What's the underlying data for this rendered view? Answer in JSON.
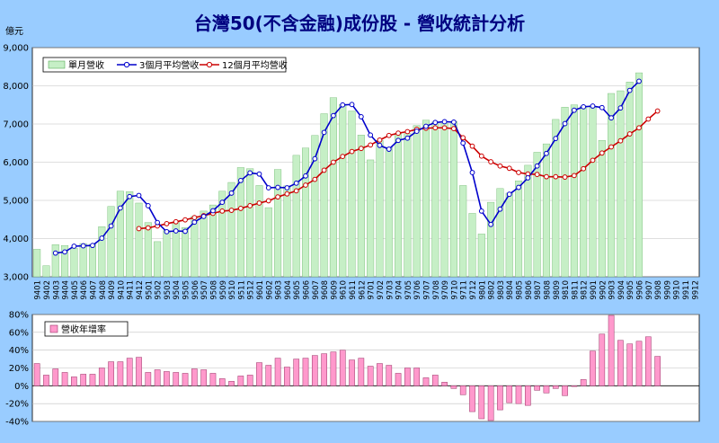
{
  "page_title": "台灣50(不含金融)成份股 - 營收統計分析",
  "chart_data": [
    {
      "type": "bar+line",
      "title": "台灣50(不含金融)成份股 - 營收統計分析",
      "ylabel": "億元",
      "ylim": [
        3000,
        9000
      ],
      "yticks": [
        "3,000",
        "4,000",
        "5,000",
        "6,000",
        "7,000",
        "8,000",
        "9,000"
      ],
      "grid": true,
      "legend": "top-left",
      "categories": [
        "9401",
        "9402",
        "9403",
        "9404",
        "9405",
        "9406",
        "9407",
        "9408",
        "9409",
        "9410",
        "9411",
        "9412",
        "9501",
        "9502",
        "9503",
        "9504",
        "9505",
        "9506",
        "9507",
        "9508",
        "9509",
        "9510",
        "9511",
        "9512",
        "9601",
        "9602",
        "9603",
        "9604",
        "9605",
        "9606",
        "9607",
        "9608",
        "9609",
        "9610",
        "9611",
        "9612",
        "9701",
        "9702",
        "9703",
        "9704",
        "9705",
        "9706",
        "9707",
        "9708",
        "9709",
        "9710",
        "9711",
        "9712",
        "9801",
        "9802",
        "9803",
        "9804",
        "9805",
        "9806",
        "9807",
        "9808",
        "9809",
        "9810",
        "9811",
        "9812",
        "9901",
        "9902",
        "9903",
        "9904",
        "9905",
        "9906",
        "9907",
        "9908",
        "9909",
        "9910",
        "9911",
        "9912"
      ],
      "series": [
        {
          "name": "單月營收",
          "kind": "bar",
          "color": "#c6efc6",
          "values": [
            3720,
            3290,
            3840,
            3820,
            3750,
            3870,
            3850,
            4310,
            4840,
            5240,
            5230,
            4930,
            4420,
            3920,
            4210,
            4440,
            4290,
            4580,
            4720,
            4880,
            5240,
            5470,
            5860,
            5830,
            5390,
            4810,
            5810,
            5380,
            6180,
            6370,
            6700,
            7270,
            7690,
            7510,
            7340,
            6710,
            6060,
            6570,
            6390,
            6750,
            6750,
            6960,
            7100,
            7050,
            7020,
            7070,
            5390,
            4660,
            4120,
            4950,
            5310,
            5190,
            5510,
            5920,
            6260,
            6480,
            7120,
            7440,
            7500,
            7470,
            7440,
            6570,
            7800,
            7870,
            8100,
            8340,
            null,
            null,
            null,
            null,
            null,
            null
          ]
        },
        {
          "name": "3個月平均營收",
          "kind": "line",
          "color": "#0000cc",
          "values": [
            null,
            null,
            3620,
            3650,
            3800,
            3810,
            3820,
            4010,
            4330,
            4800,
            5100,
            5130,
            4860,
            4420,
            4180,
            4200,
            4190,
            4430,
            4580,
            4730,
            4950,
            5190,
            5520,
            5720,
            5690,
            5330,
            5340,
            5330,
            5450,
            5640,
            6090,
            6780,
            7220,
            7500,
            7510,
            7190,
            6710,
            6440,
            6340,
            6570,
            6630,
            6810,
            6940,
            7040,
            7060,
            7050,
            6500,
            5730,
            4720,
            4370,
            4770,
            5160,
            5340,
            5590,
            5900,
            6230,
            6620,
            7010,
            7360,
            7450,
            7470,
            7430,
            7160,
            7420,
            7880,
            8120,
            null,
            null,
            null,
            null,
            null,
            null
          ]
        },
        {
          "name": "12個月平均營收",
          "kind": "line",
          "color": "#cc0000",
          "values": [
            null,
            null,
            null,
            null,
            null,
            null,
            null,
            null,
            null,
            null,
            null,
            4260,
            4280,
            4330,
            4390,
            4440,
            4490,
            4550,
            4600,
            4660,
            4720,
            4740,
            4790,
            4860,
            4930,
            4990,
            5090,
            5170,
            5250,
            5400,
            5550,
            5790,
            6000,
            6150,
            6280,
            6360,
            6450,
            6580,
            6700,
            6760,
            6800,
            6860,
            6890,
            6900,
            6900,
            6880,
            6640,
            6420,
            6160,
            6010,
            5900,
            5840,
            5730,
            5690,
            5680,
            5620,
            5620,
            5610,
            5650,
            5830,
            6050,
            6240,
            6400,
            6560,
            6740,
            6900,
            7130,
            7340,
            null,
            null,
            null,
            null
          ]
        }
      ]
    },
    {
      "type": "bar",
      "ylim": [
        -40,
        80
      ],
      "yticks": [
        "-40%",
        "-20%",
        "0%",
        "20%",
        "40%",
        "60%",
        "80%"
      ],
      "grid": true,
      "legend": "top-left",
      "categories": [
        "9401",
        "9402",
        "9403",
        "9404",
        "9405",
        "9406",
        "9407",
        "9408",
        "9409",
        "9410",
        "9411",
        "9412",
        "9501",
        "9502",
        "9503",
        "9504",
        "9505",
        "9506",
        "9507",
        "9508",
        "9509",
        "9510",
        "9511",
        "9512",
        "9601",
        "9602",
        "9603",
        "9604",
        "9605",
        "9606",
        "9607",
        "9608",
        "9609",
        "9610",
        "9611",
        "9612",
        "9701",
        "9702",
        "9703",
        "9704",
        "9705",
        "9706",
        "9707",
        "9708",
        "9709",
        "9710",
        "9711",
        "9712",
        "9801",
        "9802",
        "9803",
        "9804",
        "9805",
        "9806",
        "9807",
        "9808",
        "9809",
        "9810",
        "9811",
        "9812",
        "9901",
        "9902",
        "9903",
        "9904",
        "9905",
        "9906",
        "9907",
        "9908",
        "9909",
        "9910",
        "9911",
        "9912"
      ],
      "series": [
        {
          "name": "營收年增率",
          "kind": "bar",
          "color": "#ff99cc",
          "values": [
            25,
            12,
            19,
            15,
            10,
            13,
            13,
            20,
            27,
            27,
            31,
            32,
            15,
            18,
            16,
            15,
            14,
            19,
            18,
            14,
            8,
            5,
            11,
            12,
            26,
            23,
            31,
            21,
            30,
            31,
            34,
            36,
            38,
            40,
            29,
            31,
            22,
            25,
            23,
            14,
            20,
            20,
            9,
            12,
            4,
            -3,
            -10,
            -29,
            -37,
            -39,
            -27,
            -19,
            -20,
            -22,
            -5,
            -8,
            -3,
            -11,
            0,
            7,
            39,
            58,
            79,
            51,
            47,
            50,
            55,
            33,
            null,
            null,
            null,
            null
          ]
        }
      ]
    }
  ]
}
